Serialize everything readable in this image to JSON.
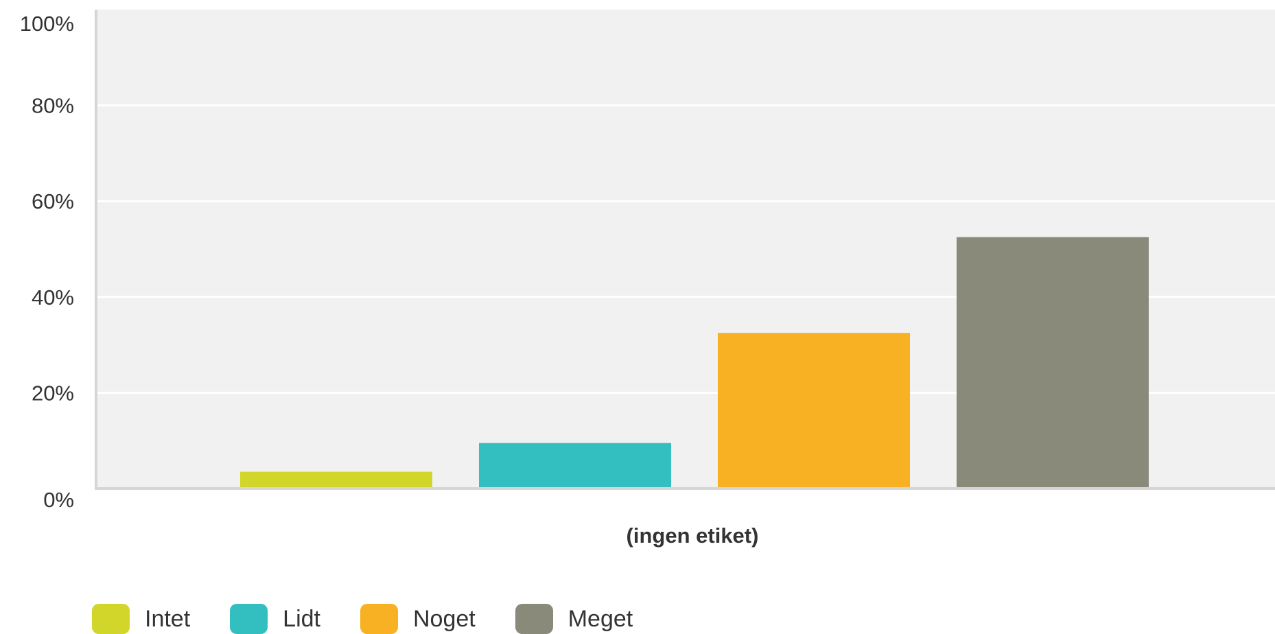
{
  "chart_data": {
    "type": "bar",
    "categories": [
      "(ingen etiket)"
    ],
    "series": [
      {
        "name": "Intet",
        "values": [
          3.5
        ],
        "color": "#d2d62a"
      },
      {
        "name": "Lidt",
        "values": [
          9.5
        ],
        "color": "#33bfbf"
      },
      {
        "name": "Noget",
        "values": [
          32.5
        ],
        "color": "#f8b123"
      },
      {
        "name": "Meget",
        "values": [
          52.5
        ],
        "color": "#8a8a7a"
      }
    ],
    "y_ticks": [
      "0%",
      "20%",
      "40%",
      "60%",
      "80%",
      "100%"
    ],
    "ylim": [
      0,
      100
    ],
    "xlabel": "(ingen etiket)",
    "ylabel": "",
    "title": "",
    "grid": true,
    "legend_position": "bottom-left",
    "colors": {
      "plot_background": "#f0f1f0",
      "gridline": "#ffffff",
      "axis": "#d6d6d6"
    }
  }
}
